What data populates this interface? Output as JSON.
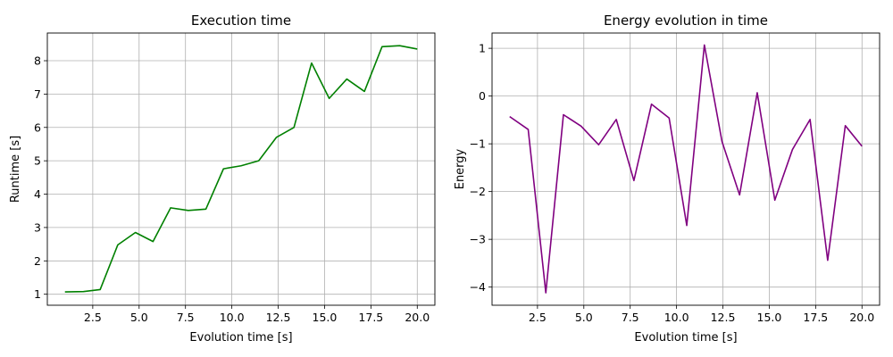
{
  "chart_data": [
    {
      "type": "line",
      "title": "Execution time",
      "xlabel": "Evolution time [s]",
      "ylabel": "Runtime [s]",
      "xlim": [
        0.05,
        20.95
      ],
      "ylim": [
        0.67,
        8.83
      ],
      "xticks": [
        2.5,
        5.0,
        7.5,
        10.0,
        12.5,
        15.0,
        17.5,
        20.0
      ],
      "xtick_labels": [
        "2.5",
        "5.0",
        "7.5",
        "10.0",
        "12.5",
        "15.0",
        "17.5",
        "20.0"
      ],
      "yticks": [
        1,
        2,
        3,
        4,
        5,
        6,
        7,
        8
      ],
      "ytick_labels": [
        "1",
        "2",
        "3",
        "4",
        "5",
        "6",
        "7",
        "8"
      ],
      "grid": true,
      "series": [
        {
          "color": "#008000",
          "x": [
            1.0,
            2.0,
            2.9,
            3.85,
            4.8,
            5.75,
            6.7,
            7.65,
            8.6,
            9.55,
            10.5,
            11.45,
            12.4,
            13.35,
            14.3,
            15.25,
            16.2,
            17.15,
            18.1,
            19.05,
            20.0
          ],
          "y": [
            1.07,
            1.08,
            1.14,
            2.48,
            2.85,
            2.58,
            3.59,
            3.51,
            3.55,
            4.76,
            4.85,
            5.0,
            5.7,
            6.0,
            7.93,
            6.87,
            7.45,
            7.08,
            8.42,
            8.45,
            8.35
          ]
        }
      ]
    },
    {
      "type": "line",
      "title": "Energy evolution in time",
      "xlabel": "Evolution time [s]",
      "ylabel": "Energy",
      "xlim": [
        0.05,
        20.95
      ],
      "ylim": [
        -4.38,
        1.32
      ],
      "xticks": [
        2.5,
        5.0,
        7.5,
        10.0,
        12.5,
        15.0,
        17.5,
        20.0
      ],
      "xtick_labels": [
        "2.5",
        "5.0",
        "7.5",
        "10.0",
        "12.5",
        "15.0",
        "17.5",
        "20.0"
      ],
      "yticks": [
        -4,
        -3,
        -2,
        -1,
        0,
        1
      ],
      "ytick_labels": [
        "−4",
        "−3",
        "−2",
        "−1",
        "0",
        "1"
      ],
      "grid": true,
      "series": [
        {
          "color": "#800080",
          "x": [
            1.0,
            2.0,
            2.95,
            3.9,
            4.85,
            5.8,
            6.75,
            7.7,
            8.65,
            9.6,
            10.55,
            11.5,
            12.45,
            13.4,
            14.35,
            15.3,
            16.25,
            17.2,
            18.15,
            19.1,
            20.0
          ],
          "y": [
            -0.43,
            -0.7,
            -4.12,
            -0.39,
            -0.63,
            -1.02,
            -0.49,
            -1.77,
            -0.17,
            -0.46,
            -2.71,
            1.07,
            -0.95,
            -2.07,
            0.07,
            -2.18,
            -1.12,
            -0.49,
            -3.44,
            -0.62,
            -1.05
          ]
        }
      ]
    }
  ]
}
